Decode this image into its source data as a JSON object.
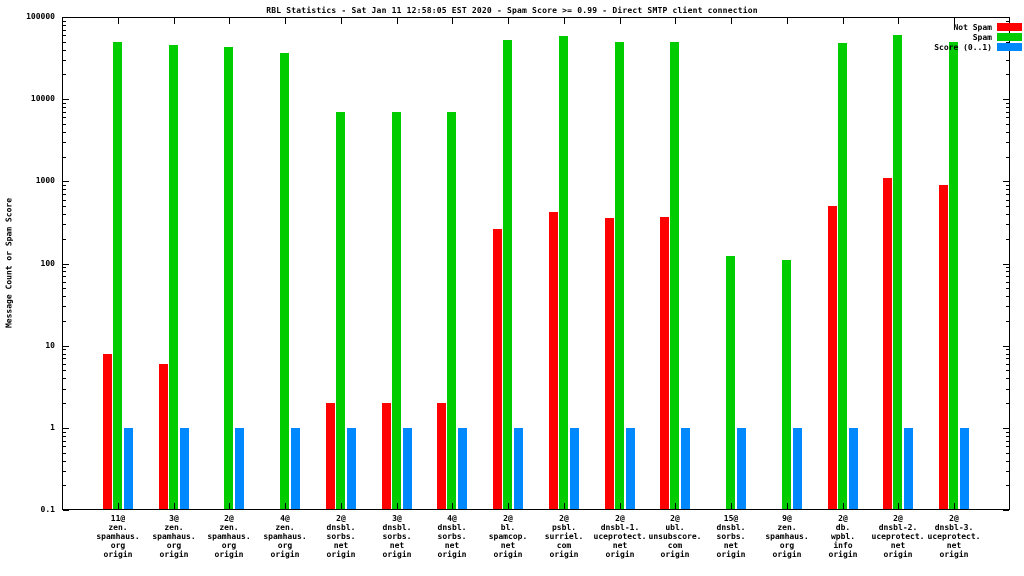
{
  "title": "RBL Statistics - Sat Jan 11 12:58:05 EST 2020 - Spam Score >= 0.99 - Direct SMTP client connection",
  "ylabel": "Message Count or Spam Score",
  "chart_data": {
    "type": "bar",
    "scale": "log",
    "ylim": [
      0.1,
      100000
    ],
    "ytick_labels": [
      "0.1",
      "1",
      "10",
      "100",
      "1000",
      "10000",
      "100000"
    ],
    "grid": false,
    "legend_position": "top-right",
    "categories": [
      [
        "11@",
        "zen.",
        "spamhaus.",
        "org",
        "origin"
      ],
      [
        "3@",
        "zen.",
        "spamhaus.",
        "org",
        "origin"
      ],
      [
        "2@",
        "zen.",
        "spamhaus.",
        "org",
        "origin"
      ],
      [
        "4@",
        "zen.",
        "spamhaus.",
        "org",
        "origin"
      ],
      [
        "2@",
        "dnsbl.",
        "sorbs.",
        "net",
        "origin"
      ],
      [
        "3@",
        "dnsbl.",
        "sorbs.",
        "net",
        "origin"
      ],
      [
        "4@",
        "dnsbl.",
        "sorbs.",
        "net",
        "origin"
      ],
      [
        "2@",
        "bl.",
        "spamcop.",
        "net",
        "origin"
      ],
      [
        "2@",
        "psbl.",
        "surriel.",
        "com",
        "origin"
      ],
      [
        "2@",
        "dnsbl-1.",
        "uceprotect.",
        "net",
        "origin"
      ],
      [
        "2@",
        "ubl.",
        "unsubscore.",
        "com",
        "origin"
      ],
      [
        "15@",
        "dnsbl.",
        "sorbs.",
        "net",
        "origin"
      ],
      [
        "9@",
        "zen.",
        "spamhaus.",
        "org",
        "origin"
      ],
      [
        "2@",
        "db.",
        "wpbl.",
        "info",
        "origin"
      ],
      [
        "2@",
        "dnsbl-2.",
        "uceprotect.",
        "net",
        "origin"
      ],
      [
        "2@",
        "dnsbl-3.",
        "uceprotect.",
        "net",
        "origin"
      ]
    ],
    "series": [
      {
        "name": "Not Spam",
        "color": "#ff0000",
        "values": [
          8,
          6,
          null,
          null,
          2,
          2,
          2,
          260,
          420,
          360,
          370,
          null,
          null,
          500,
          1100,
          900
        ]
      },
      {
        "name": "Spam",
        "color": "#00cc00",
        "values": [
          50000,
          46000,
          43000,
          36000,
          7000,
          7000,
          7000,
          52000,
          58000,
          50000,
          50000,
          125,
          110,
          48000,
          60000,
          50000
        ]
      },
      {
        "name": "Score (0..1)",
        "color": "#0088ff",
        "values": [
          1,
          1,
          1,
          1,
          1,
          1,
          1,
          1,
          1,
          1,
          1,
          1,
          1,
          1,
          1,
          1
        ]
      }
    ]
  }
}
